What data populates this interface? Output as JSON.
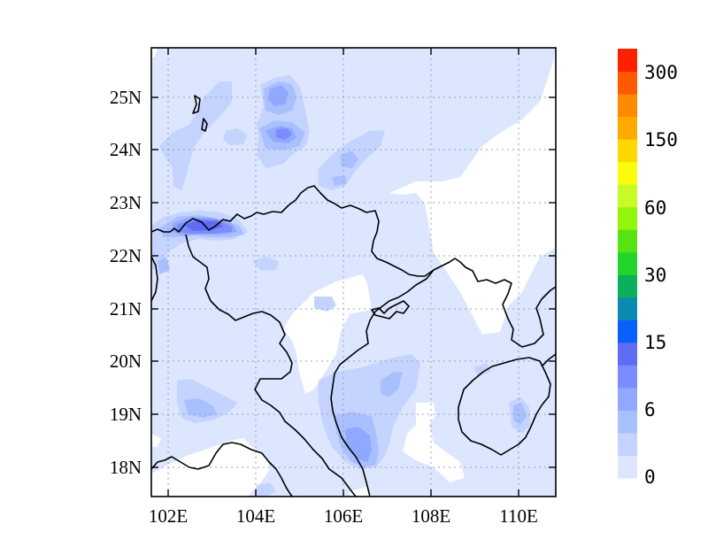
{
  "map": {
    "lon_ticks": [
      "102E",
      "104E",
      "106E",
      "108E",
      "110E"
    ],
    "lat_ticks": [
      "18N",
      "19N",
      "20N",
      "21N",
      "22N",
      "23N",
      "24N",
      "25N"
    ]
  },
  "colorbar": {
    "colors": [
      "#dce6ff",
      "#c4d3ff",
      "#a9c0ff",
      "#91a8ff",
      "#7b8cff",
      "#5f6cf4",
      "#0a5fff",
      "#0b8bb0",
      "#0ab15a",
      "#24d42a",
      "#57e214",
      "#93f50a",
      "#c8fb26",
      "#fbfb0a",
      "#ffd800",
      "#ffaa00",
      "#ff8a00",
      "#ff5a00",
      "#ff2000"
    ],
    "labels": [
      "0",
      "6",
      "15",
      "30",
      "60",
      "150",
      "300"
    ]
  }
}
